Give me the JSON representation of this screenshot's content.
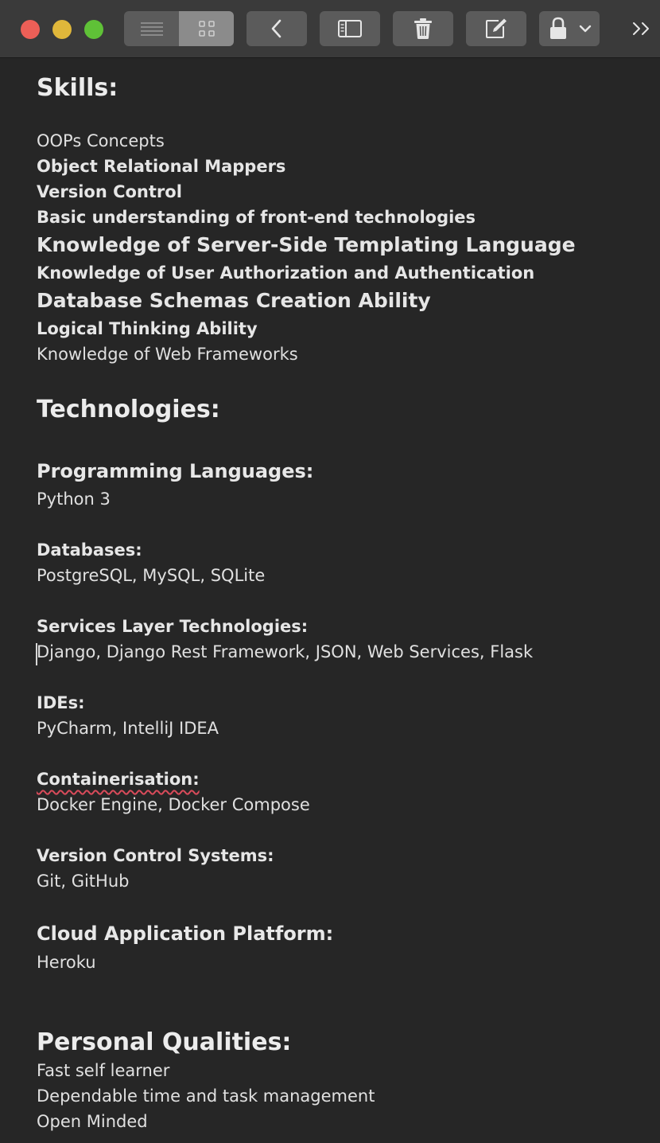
{
  "toolbar": {
    "buttons": [
      {
        "name": "list-view",
        "icon": "list-icon"
      },
      {
        "name": "grid-view",
        "icon": "grid-icon"
      },
      {
        "name": "back",
        "icon": "chevron-left-icon"
      },
      {
        "name": "sidebar",
        "icon": "sidebar-icon"
      },
      {
        "name": "delete",
        "icon": "trash-icon"
      },
      {
        "name": "compose",
        "icon": "compose-icon"
      },
      {
        "name": "lock",
        "icon": "lock-icon"
      },
      {
        "name": "more",
        "icon": "double-chevron-right-icon"
      }
    ],
    "colors": {
      "close": "#ec5f57",
      "minimize": "#e0b73a",
      "zoom": "#5fc137"
    }
  },
  "note": {
    "skills": {
      "heading": "Skills:",
      "items": [
        "OOPs Concepts",
        "Object Relational Mappers",
        "Version Control",
        "Basic understanding of front-end technologies",
        "Knowledge of Server-Side Templating Language",
        "Knowledge of User Authorization and Authentication",
        "Database Schemas Creation Ability",
        "Logical Thinking Ability",
        "Knowledge of Web Frameworks"
      ]
    },
    "technologies": {
      "heading": "Technologies:",
      "sections": [
        {
          "title": "Programming Languages:",
          "value": "Python 3"
        },
        {
          "title": "Databases:",
          "value": "PostgreSQL, MySQL, SQLite"
        },
        {
          "title": "Services Layer Technologies:",
          "value": "Django, Django Rest Framework, JSON,  Web Services, Flask"
        },
        {
          "title": "IDEs:",
          "value": "PyCharm, IntelliJ IDEA"
        },
        {
          "title": "Containerisation:",
          "value": "Docker Engine, Docker Compose"
        },
        {
          "title": "Version Control Systems:",
          "value": "Git, GitHub"
        },
        {
          "title": "Cloud Application Platform:",
          "value": "Heroku"
        }
      ]
    },
    "personal_qualities": {
      "heading": "Personal Qualities:",
      "items": [
        "Fast self learner",
        "Dependable time and task management",
        "Open Minded"
      ]
    }
  }
}
